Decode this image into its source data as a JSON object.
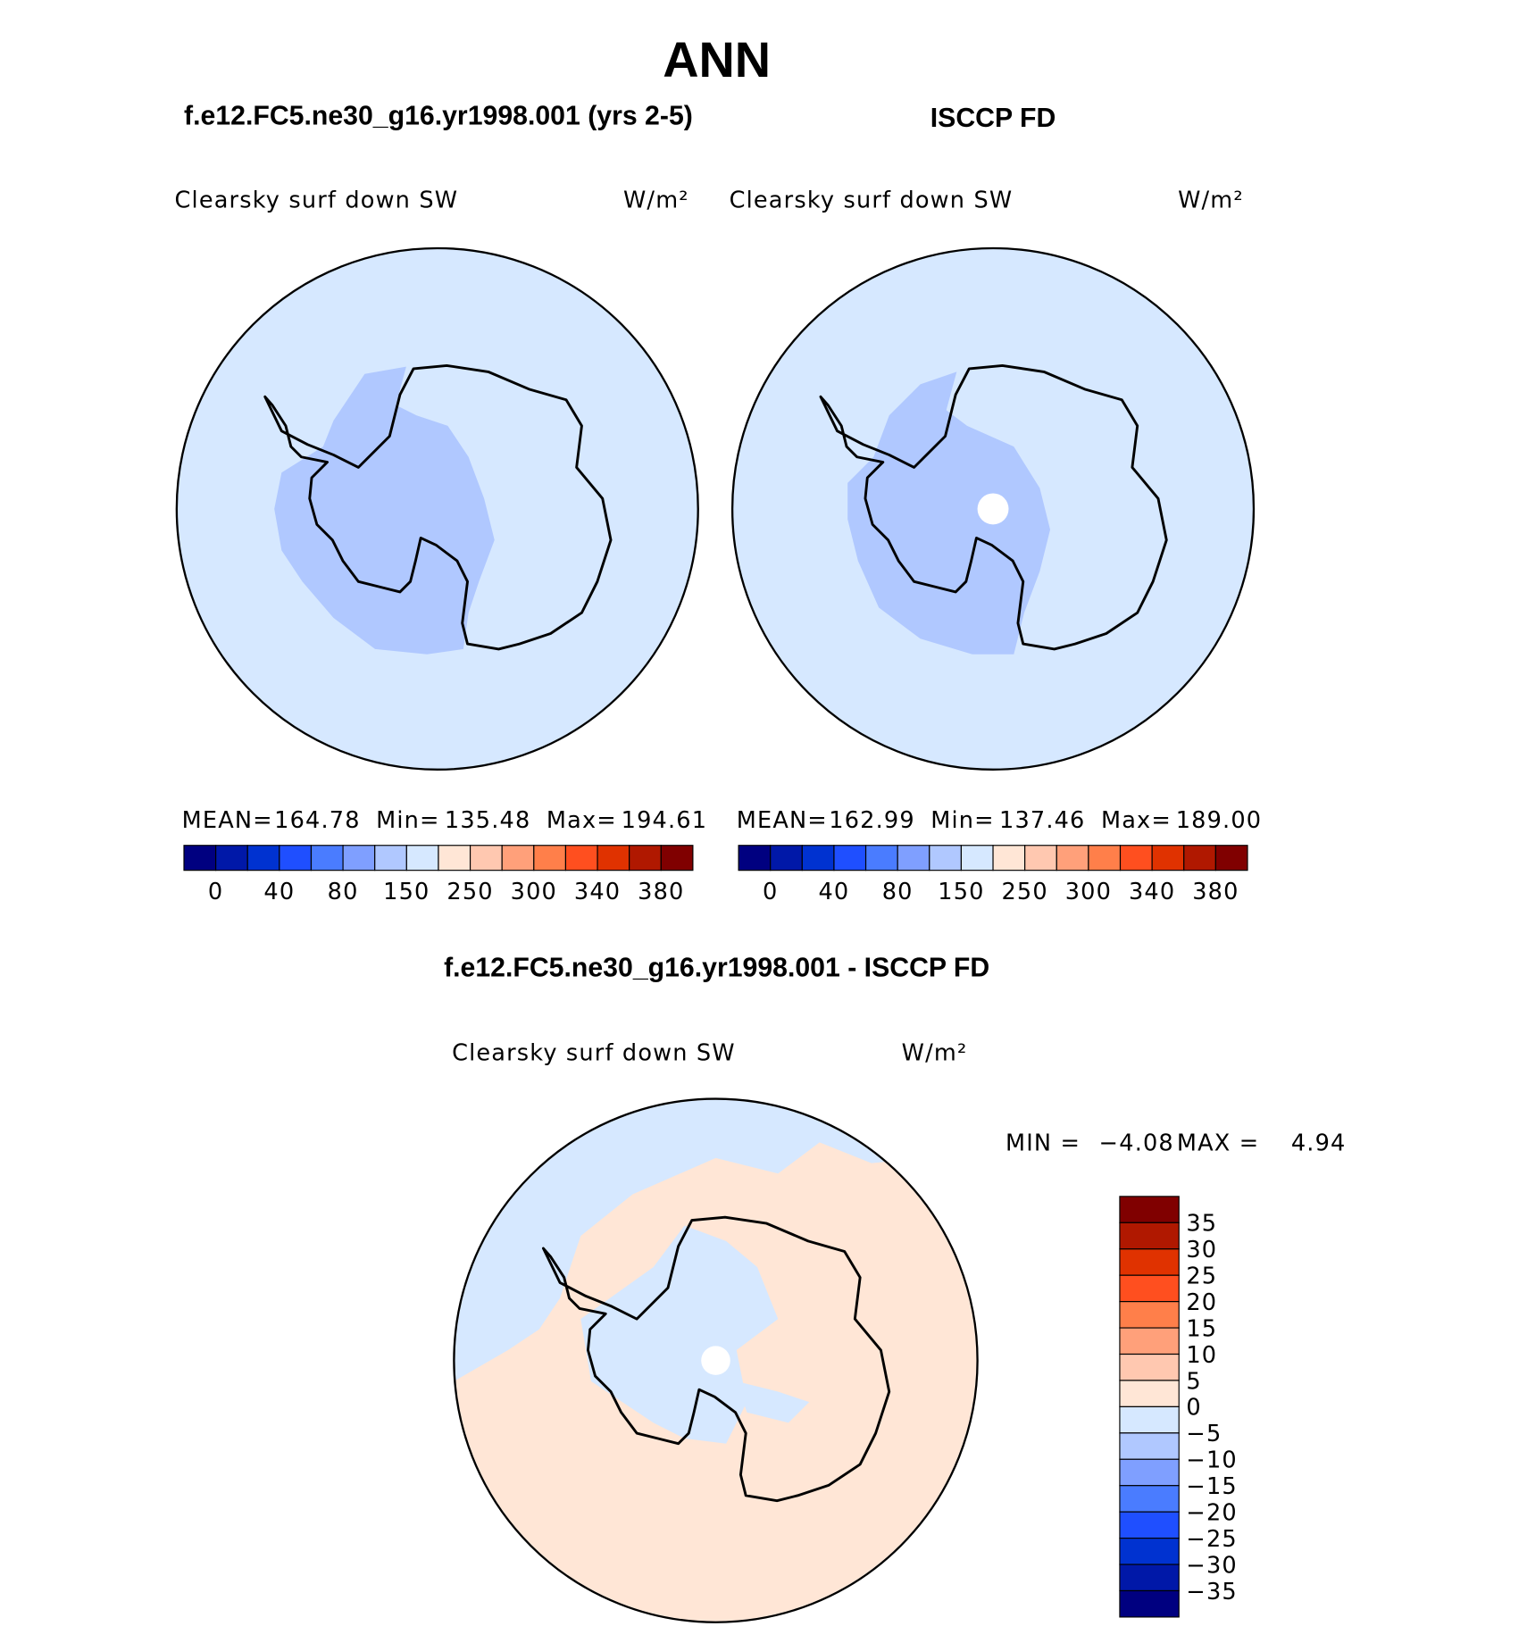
{
  "title": "ANN",
  "panels": [
    {
      "title": "f.e12.FC5.ne30_g16.yr1998.001 (yrs 2-5)",
      "variable": "Clearsky surf down SW",
      "units": "W/m²",
      "stats": [
        {
          "label": "MEAN=",
          "value": 164.78
        },
        {
          "label": "Min=",
          "value": 135.48
        },
        {
          "label": "Max=",
          "value": 194.61
        }
      ]
    },
    {
      "title": "ISCCP FD",
      "variable": "Clearsky surf down SW",
      "units": "W/m²",
      "stats": [
        {
          "label": "MEAN=",
          "value": 162.99
        },
        {
          "label": "Min=",
          "value": 137.46
        },
        {
          "label": "Max=",
          "value": {
            "value": 189,
            "label": "189.00"
          }
        }
      ]
    }
  ],
  "abs_colorbar": {
    "colors": [
      "#000080",
      "#0018a8",
      "#0032d0",
      "#1f4fff",
      "#4a7cff",
      "#7f9fff",
      "#b0c8ff",
      "#d6e8ff",
      "#ffe6d6",
      "#ffc8b0",
      "#ffa07a",
      "#ff7f4a",
      "#ff4f1f",
      "#e03200",
      "#b01800",
      "#800000"
    ],
    "labels": [
      0,
      40,
      80,
      150,
      250,
      300,
      340,
      380
    ]
  },
  "difference": {
    "title": "f.e12.FC5.ne30_g16.yr1998.001 - ISCCP FD",
    "variable": "Clearsky surf down SW",
    "units": "W/m²",
    "stats": [
      {
        "label": "MIN =",
        "value": {
          "value": -4.08,
          "label": "−4.08"
        }
      },
      {
        "label": "MAX =",
        "value": 4.94
      }
    ],
    "colorbar": {
      "colors": [
        "#800000",
        "#b01800",
        "#e03200",
        "#ff4f1f",
        "#ff7f4a",
        "#ffa07a",
        "#ffc8b0",
        "#ffe6d6",
        "#d6e8ff",
        "#b0c8ff",
        "#7f9fff",
        "#4a7cff",
        "#1f4fff",
        "#0032d0",
        "#0018a8",
        "#000080"
      ],
      "labels": [
        35,
        30,
        25,
        20,
        15,
        10,
        5,
        0,
        {
          "value": -5,
          "label": "−5"
        },
        {
          "value": -10,
          "label": "−10"
        },
        {
          "value": -15,
          "label": "−15"
        },
        {
          "value": -20,
          "label": "−20"
        },
        {
          "value": -25,
          "label": "−25"
        },
        {
          "value": -30,
          "label": "−30"
        },
        {
          "value": -35,
          "label": "−35"
        }
      ]
    }
  }
}
